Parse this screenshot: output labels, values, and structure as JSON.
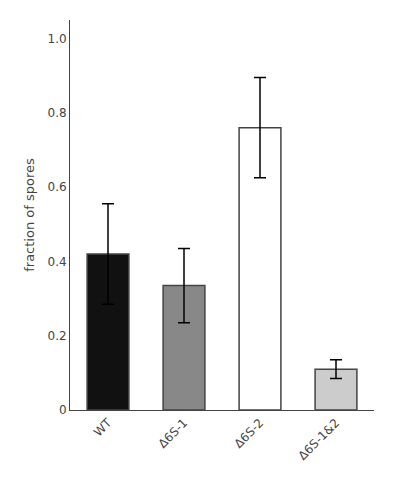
{
  "chart_data": {
    "type": "bar",
    "categories": [
      "WT",
      "Δ6S-1",
      "Δ6S-2",
      "Δ6S-1&2"
    ],
    "values": [
      0.42,
      0.335,
      0.76,
      0.11
    ],
    "errors": [
      0.135,
      0.1,
      0.135,
      0.025
    ],
    "colors": [
      "#111111",
      "#888888",
      "#ffffff",
      "#cccccc"
    ],
    "ylabel": "fraction of spores",
    "ylim": [
      0,
      1.05
    ],
    "yticks": [
      0,
      0.2,
      0.4,
      0.6,
      0.8,
      {
        "value": 1.0,
        "label": "1.0"
      }
    ],
    "grid": false
  }
}
